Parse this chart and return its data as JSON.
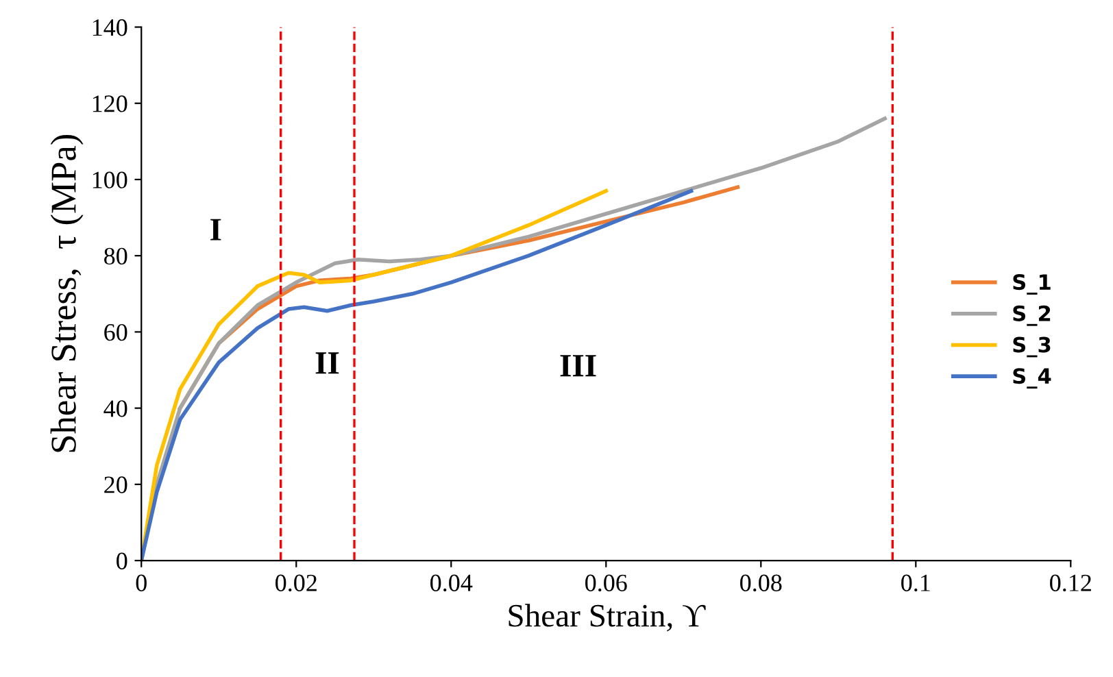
{
  "chart_data": {
    "type": "line",
    "xlabel": "Shear Strain, ϒ",
    "ylabel": "Shear Stress,  τ (MPa)",
    "xlim": [
      0,
      0.12
    ],
    "xticks": [
      0,
      0.02,
      0.04,
      0.06,
      0.08,
      0.1,
      0.12
    ],
    "ylim": [
      0,
      140
    ],
    "yticks": [
      0,
      20,
      40,
      60,
      80,
      100,
      120,
      140
    ],
    "grid": false,
    "legend": "right",
    "marker": "none",
    "line_style": "solid",
    "series": [
      {
        "name": "S_1",
        "color": "#ed7d31",
        "x": [
          0.005,
          0.01,
          0.015,
          0.02,
          0.023,
          0.027,
          0.03,
          0.04,
          0.05,
          0.06,
          0.07,
          0.077
        ],
        "values": [
          40,
          57,
          66,
          72,
          73.5,
          74,
          75,
          80,
          84,
          89,
          94,
          98
        ]
      },
      {
        "name": "S_2",
        "color": "#a5a5a5",
        "x": [
          0,
          0.002,
          0.005,
          0.01,
          0.015,
          0.02,
          0.025,
          0.028,
          0.032,
          0.036,
          0.04,
          0.05,
          0.06,
          0.07,
          0.08,
          0.09,
          0.096
        ],
        "values": [
          0,
          20,
          40,
          57,
          67,
          73,
          78,
          79,
          78.5,
          79,
          80,
          85,
          91,
          97,
          103,
          110,
          116
        ]
      },
      {
        "name": "S_3",
        "color": "#ffc000",
        "x": [
          0,
          0.002,
          0.005,
          0.01,
          0.015,
          0.019,
          0.021,
          0.023,
          0.027,
          0.03,
          0.04,
          0.05,
          0.06
        ],
        "values": [
          0,
          25,
          45,
          62,
          72,
          75.5,
          75,
          73,
          73.5,
          75,
          80,
          88,
          97
        ]
      },
      {
        "name": "S_4",
        "color": "#4472c4",
        "x": [
          0,
          0.002,
          0.005,
          0.01,
          0.015,
          0.019,
          0.021,
          0.024,
          0.027,
          0.03,
          0.035,
          0.04,
          0.05,
          0.06,
          0.071
        ],
        "values": [
          0,
          18,
          37,
          52,
          61,
          66,
          66.5,
          65.5,
          67,
          68,
          70,
          73,
          80,
          88,
          97
        ]
      }
    ],
    "ref_lines": [
      {
        "axis": "x",
        "value": 0.018,
        "color": "#ff0000",
        "line_style": "dashed"
      },
      {
        "axis": "x",
        "value": 0.0275,
        "color": "#ff0000",
        "line_style": "dashed"
      },
      {
        "axis": "x",
        "value": 0.097,
        "color": "#ff0000",
        "line_style": "dashed"
      }
    ],
    "annotations": [
      "I",
      "II",
      "III"
    ]
  }
}
